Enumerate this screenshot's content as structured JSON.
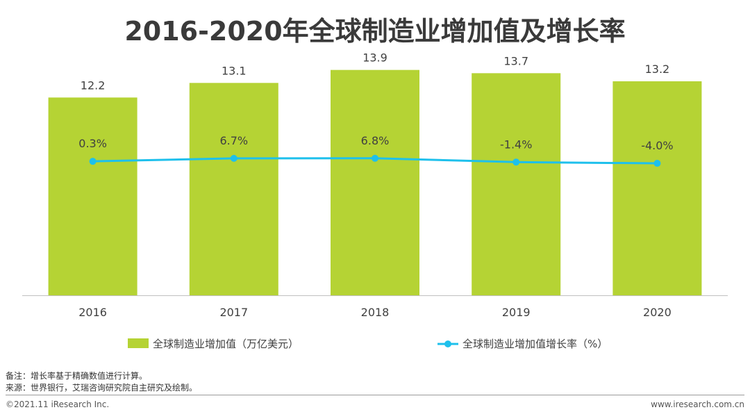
{
  "title": "2016-2020年全球制造业增加值及增长率",
  "chart_data": {
    "type": "bar",
    "categories": [
      "2016",
      "2017",
      "2018",
      "2019",
      "2020"
    ],
    "series": [
      {
        "name": "全球制造业增加值（万亿美元）",
        "kind": "bar",
        "values": [
          12.2,
          13.1,
          13.9,
          13.7,
          13.2
        ],
        "labels": [
          "12.2",
          "13.1",
          "13.9",
          "13.7",
          "13.2"
        ]
      },
      {
        "name": "全球制造业增加值增长率（%）",
        "kind": "line",
        "values": [
          0.3,
          6.7,
          6.8,
          -1.4,
          -4.0
        ],
        "labels": [
          "0.3%",
          "6.7%",
          "6.8%",
          "-1.4%",
          "-4.0%"
        ]
      }
    ],
    "bar_ylim": [
      0,
      16.5
    ],
    "line_ylim": [
      -160,
      170
    ],
    "legend_position": "bottom"
  },
  "colors": {
    "bar": "#b5d334",
    "line": "#1ec0ec",
    "axis": "#bfbfbf"
  },
  "notes": {
    "remark": "备注：增长率基于精确数值进行计算。",
    "source": "来源：世界银行，艾瑞咨询研究院自主研究及绘制。"
  },
  "footer": {
    "copyright": "©2021.11 iResearch Inc.",
    "website": "www.iresearch.com.cn"
  }
}
